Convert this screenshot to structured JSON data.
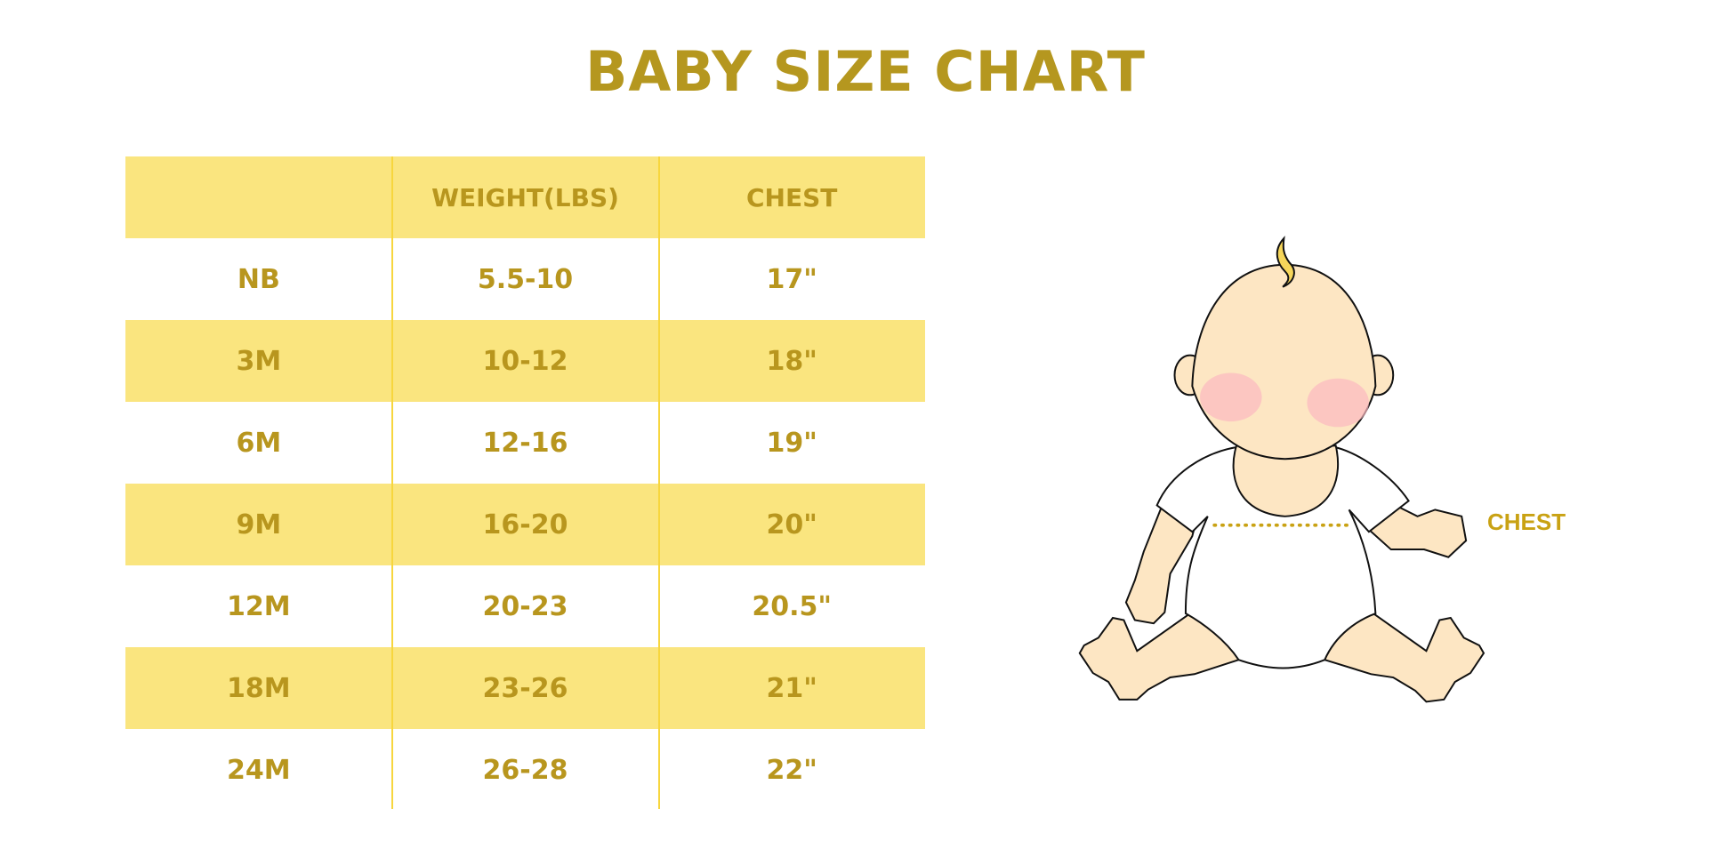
{
  "title": "BABY SIZE CHART",
  "table": {
    "headers": [
      "",
      "WEIGHT(LBS)",
      "CHEST"
    ],
    "rows": [
      [
        "NB",
        "5.5-10",
        "17\""
      ],
      [
        "3M",
        "10-12",
        "18\""
      ],
      [
        "6M",
        "12-16",
        "19\""
      ],
      [
        "9M",
        "16-20",
        "20\""
      ],
      [
        "12M",
        "20-23",
        "20.5\""
      ],
      [
        "18M",
        "23-26",
        "21\""
      ],
      [
        "24M",
        "26-28",
        "22\""
      ]
    ]
  },
  "illustration": {
    "chest_label": "CHEST"
  },
  "colors": {
    "text": "#b8961e",
    "band": "#fae57f",
    "divider": "#f7d63e",
    "skin": "#fde6c3",
    "cheek": "#fbb8c0"
  }
}
